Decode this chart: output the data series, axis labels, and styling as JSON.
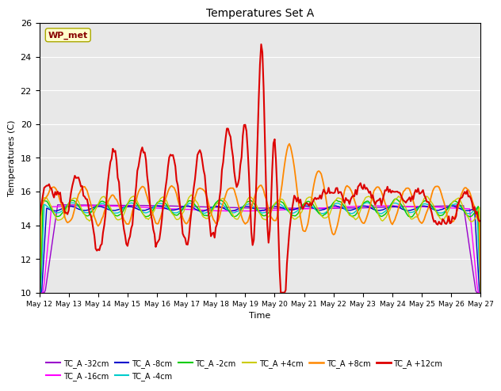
{
  "title": "Temperatures Set A",
  "xlabel": "Time",
  "ylabel": "Temperatures (C)",
  "ylim": [
    10,
    26
  ],
  "background_color": "#e8e8e8",
  "wp_met_label": "WP_met",
  "wp_met_box_color": "#ffffcc",
  "wp_met_text_color": "#880000",
  "series_order": [
    "TC_A -32cm",
    "TC_A -16cm",
    "TC_A -8cm",
    "TC_A -4cm",
    "TC_A -2cm",
    "TC_A +4cm",
    "TC_A +8cm",
    "TC_A +12cm"
  ],
  "series": {
    "TC_A -32cm": {
      "color": "#9900cc",
      "lw": 1.0
    },
    "TC_A -16cm": {
      "color": "#ff00ff",
      "lw": 1.0
    },
    "TC_A -8cm": {
      "color": "#0000cc",
      "lw": 1.0
    },
    "TC_A -4cm": {
      "color": "#00cccc",
      "lw": 1.0
    },
    "TC_A -2cm": {
      "color": "#00cc00",
      "lw": 1.0
    },
    "TC_A +4cm": {
      "color": "#cccc00",
      "lw": 1.0
    },
    "TC_A +8cm": {
      "color": "#ff8800",
      "lw": 1.3
    },
    "TC_A +12cm": {
      "color": "#dd0000",
      "lw": 1.5
    }
  },
  "xtick_labels": [
    "May 12",
    "May 13",
    "May 14",
    "May 15",
    "May 16",
    "May 17",
    "May 18",
    "May 19",
    "May 20",
    "May 21",
    "May 22",
    "May 23",
    "May 24",
    "May 25",
    "May 26",
    "May 27"
  ],
  "ytick_labels": [
    "10",
    "12",
    "14",
    "16",
    "18",
    "20",
    "22",
    "24",
    "26"
  ],
  "ytick_positions": [
    10,
    12,
    14,
    16,
    18,
    20,
    22,
    24,
    26
  ],
  "legend_ncol": 6,
  "legend_row2": [
    "TC_A +8cm",
    "TC_A +12cm"
  ]
}
